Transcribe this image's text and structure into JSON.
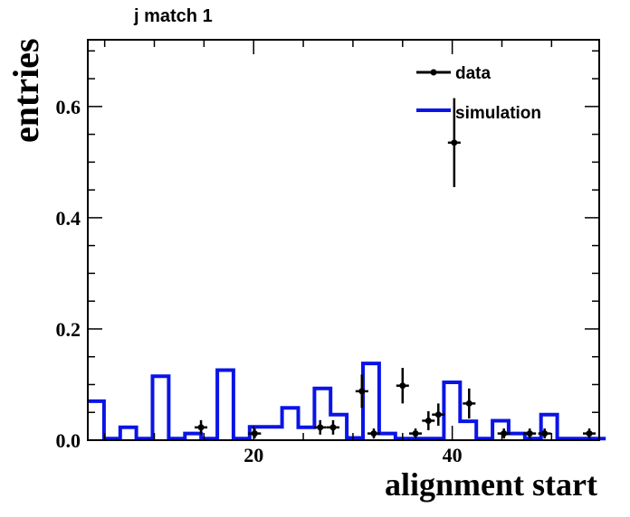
{
  "chart_data": {
    "type": "histogram",
    "title": "j match 1",
    "xlabel": "alignment start",
    "ylabel": "entries",
    "xlim": [
      3.3,
      54.8
    ],
    "ylim": [
      0,
      0.72
    ],
    "x_ticks": [
      20,
      40
    ],
    "y_ticks": [
      0.0,
      0.2,
      0.4,
      0.6
    ],
    "y_tick_labels": [
      "0.0",
      "0.2",
      "0.4",
      "0.6"
    ],
    "legend": {
      "placement": "top-right",
      "entries": [
        "data",
        "simulation"
      ]
    },
    "simulation": {
      "name": "simulation",
      "color": "#0a14e6",
      "bin_width": 1.63,
      "bin_edges_start": 3.3,
      "values": [
        0.07,
        0.003,
        0.023,
        0.003,
        0.115,
        0.003,
        0.012,
        0.003,
        0.126,
        0.003,
        0.024,
        0.024,
        0.058,
        0.023,
        0.093,
        0.046,
        0.004,
        0.138,
        0.012,
        0.003,
        0.003,
        0.003,
        0.104,
        0.034,
        0.003,
        0.035,
        0.012,
        0.003,
        0.046,
        0.003,
        0.003,
        0.003
      ]
    },
    "data": {
      "name": "data",
      "color": "#000000",
      "points": [
        {
          "x": 14.7,
          "y": 0.023,
          "err": 0.013
        },
        {
          "x": 20.1,
          "y": 0.012,
          "err": 0.009
        },
        {
          "x": 26.7,
          "y": 0.023,
          "err": 0.013
        },
        {
          "x": 28.0,
          "y": 0.023,
          "err": 0.013
        },
        {
          "x": 30.9,
          "y": 0.088,
          "err": 0.03
        },
        {
          "x": 32.1,
          "y": 0.012,
          "err": 0.009
        },
        {
          "x": 35.0,
          "y": 0.098,
          "err": 0.032
        },
        {
          "x": 36.3,
          "y": 0.012,
          "err": 0.009
        },
        {
          "x": 37.6,
          "y": 0.035,
          "err": 0.017
        },
        {
          "x": 38.6,
          "y": 0.046,
          "err": 0.02
        },
        {
          "x": 40.2,
          "y": 0.535,
          "err": 0.08
        },
        {
          "x": 41.7,
          "y": 0.066,
          "err": 0.027
        },
        {
          "x": 45.2,
          "y": 0.012,
          "err": 0.009
        },
        {
          "x": 47.8,
          "y": 0.012,
          "err": 0.009
        },
        {
          "x": 49.3,
          "y": 0.012,
          "err": 0.009
        },
        {
          "x": 53.8,
          "y": 0.012,
          "err": 0.009
        }
      ]
    }
  }
}
